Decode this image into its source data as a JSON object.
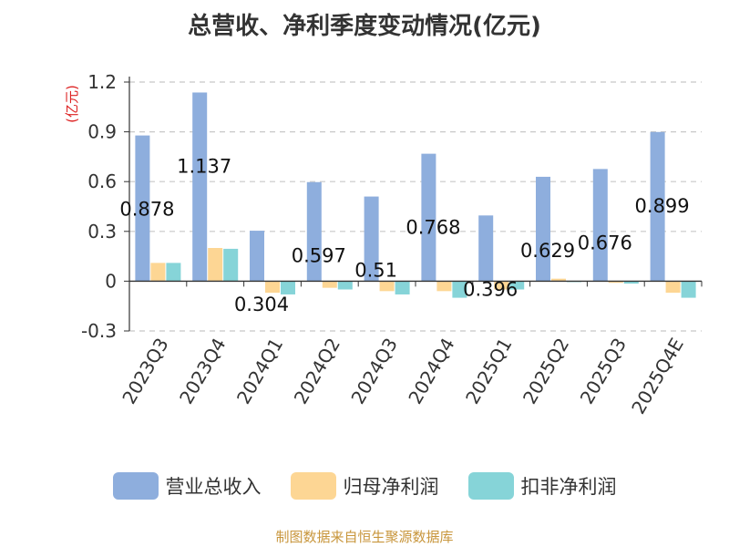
{
  "chart_data": {
    "type": "bar",
    "title": "总营收、净利季度变动情况(亿元)",
    "ylabel": "(亿元)",
    "ylim": [
      -0.3,
      1.2
    ],
    "yticks": [
      "1.2",
      "0.9",
      "0.6",
      "0.3",
      "0",
      "-0.3"
    ],
    "yticks_values": [
      1.2,
      0.9,
      0.6,
      0.3,
      0,
      -0.3
    ],
    "categories": [
      "2023Q3",
      "2023Q4",
      "2024Q1",
      "2024Q2",
      "2024Q3",
      "2024Q4",
      "2025Q1",
      "2025Q2",
      "2025Q3",
      "2025Q4E"
    ],
    "series": [
      {
        "name": "营业总收入",
        "color": "#8eaedd",
        "values": [
          0.878,
          1.137,
          0.304,
          0.597,
          0.51,
          0.768,
          0.396,
          0.629,
          0.676,
          0.899
        ]
      },
      {
        "name": "归母净利润",
        "color": "#fdd694",
        "values": [
          0.11,
          0.2,
          -0.07,
          -0.04,
          -0.06,
          -0.06,
          -0.05,
          0.015,
          -0.01,
          -0.07
        ]
      },
      {
        "name": "扣非净利润",
        "color": "#86d4d8",
        "values": [
          0.11,
          0.195,
          -0.08,
          -0.05,
          -0.08,
          -0.1,
          -0.05,
          -0.005,
          -0.015,
          -0.1
        ]
      }
    ],
    "data_labels": [
      "0.878",
      "1.137",
      "0.304",
      "0.597",
      "0.51",
      "0.768",
      "0.396",
      "0.629",
      "0.676",
      "0.899"
    ],
    "grid": true,
    "legend": "bottom"
  },
  "source": "制图数据来自恒生聚源数据库"
}
